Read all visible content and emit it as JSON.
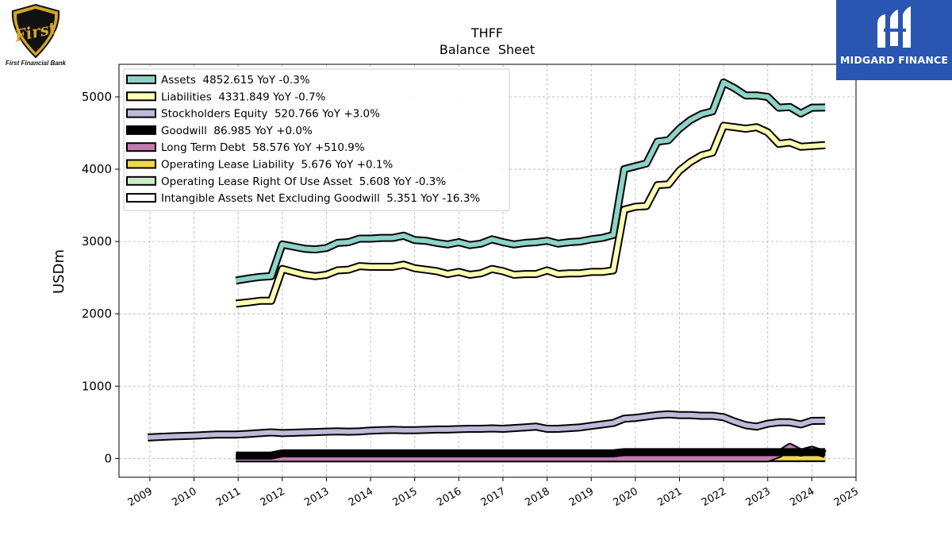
{
  "logos": {
    "left": {
      "wordmark": "First",
      "caption": "First Financial Bank"
    },
    "right": {
      "caption": "MIDGARD FINANCE"
    }
  },
  "chart_data": {
    "type": "line",
    "title": "THFF",
    "subtitle": "Balance  Sheet",
    "xlabel": "",
    "ylabel": "USDm",
    "xlim": [
      2008.3,
      2025.0
    ],
    "ylim": [
      -260,
      5450
    ],
    "xticks": [
      2009,
      2010,
      2011,
      2012,
      2013,
      2014,
      2015,
      2016,
      2017,
      2018,
      2019,
      2020,
      2021,
      2022,
      2023,
      2024,
      2025
    ],
    "yticks": [
      0,
      1000,
      2000,
      3000,
      4000,
      5000
    ],
    "grid": true,
    "legend_position": "top-left",
    "series": [
      {
        "name": "Assets",
        "legend": "Assets  4852.615 YoY -0.3%",
        "color": "#8dd3c7",
        "x": [
          2010.95,
          2011.25,
          2011.5,
          2011.75,
          2012.0,
          2012.25,
          2012.5,
          2012.75,
          2013.0,
          2013.25,
          2013.5,
          2013.75,
          2014.0,
          2014.25,
          2014.5,
          2014.75,
          2015.0,
          2015.25,
          2015.5,
          2015.75,
          2016.0,
          2016.25,
          2016.5,
          2016.75,
          2017.0,
          2017.25,
          2017.5,
          2017.75,
          2018.0,
          2018.25,
          2018.5,
          2018.75,
          2019.0,
          2019.25,
          2019.5,
          2019.75,
          2020.0,
          2020.25,
          2020.5,
          2020.75,
          2021.0,
          2021.25,
          2021.5,
          2021.75,
          2022.0,
          2022.25,
          2022.5,
          2022.75,
          2023.0,
          2023.25,
          2023.5,
          2023.75,
          2024.0,
          2024.3
        ],
        "y": [
          2460,
          2490,
          2510,
          2520,
          2960,
          2930,
          2900,
          2890,
          2910,
          2980,
          2990,
          3040,
          3040,
          3050,
          3050,
          3080,
          3020,
          3010,
          2980,
          2960,
          2990,
          2950,
          2970,
          3030,
          2990,
          2960,
          2980,
          2990,
          3010,
          2970,
          2990,
          3000,
          3030,
          3050,
          3090,
          4000,
          4040,
          4080,
          4380,
          4400,
          4560,
          4680,
          4760,
          4800,
          5200,
          5120,
          5020,
          5020,
          5000,
          4850,
          4860,
          4770,
          4850,
          4853
        ]
      },
      {
        "name": "Liabilities",
        "legend": "Liabilities  4331.849 YoY -0.7%",
        "color": "#ffffb3",
        "x": [
          2010.95,
          2011.25,
          2011.5,
          2011.75,
          2012.0,
          2012.25,
          2012.5,
          2012.75,
          2013.0,
          2013.25,
          2013.5,
          2013.75,
          2014.0,
          2014.25,
          2014.5,
          2014.75,
          2015.0,
          2015.25,
          2015.5,
          2015.75,
          2016.0,
          2016.25,
          2016.5,
          2016.75,
          2017.0,
          2017.25,
          2017.5,
          2017.75,
          2018.0,
          2018.25,
          2018.5,
          2018.75,
          2019.0,
          2019.25,
          2019.5,
          2019.75,
          2020.0,
          2020.25,
          2020.5,
          2020.75,
          2021.0,
          2021.25,
          2021.5,
          2021.75,
          2022.0,
          2022.25,
          2022.5,
          2022.75,
          2023.0,
          2023.25,
          2023.5,
          2023.75,
          2024.0,
          2024.3
        ],
        "y": [
          2140,
          2160,
          2180,
          2180,
          2620,
          2580,
          2540,
          2520,
          2540,
          2600,
          2610,
          2660,
          2650,
          2650,
          2650,
          2680,
          2630,
          2610,
          2590,
          2550,
          2580,
          2540,
          2560,
          2620,
          2590,
          2540,
          2550,
          2550,
          2600,
          2550,
          2560,
          2560,
          2580,
          2580,
          2600,
          3440,
          3480,
          3490,
          3780,
          3790,
          3980,
          4100,
          4190,
          4230,
          4600,
          4580,
          4560,
          4580,
          4510,
          4350,
          4370,
          4310,
          4320,
          4332
        ]
      },
      {
        "name": "Stockholders Equity",
        "legend": "Stockholders Equity  520.766 YoY +3.0%",
        "color": "#bebada",
        "x": [
          2008.95,
          2009.5,
          2010.0,
          2010.5,
          2010.95,
          2011.25,
          2011.5,
          2011.75,
          2012.0,
          2012.25,
          2012.5,
          2012.75,
          2013.0,
          2013.25,
          2013.5,
          2013.75,
          2014.0,
          2014.25,
          2014.5,
          2014.75,
          2015.0,
          2015.25,
          2015.5,
          2015.75,
          2016.0,
          2016.25,
          2016.5,
          2016.75,
          2017.0,
          2017.25,
          2017.5,
          2017.75,
          2018.0,
          2018.25,
          2018.5,
          2018.75,
          2019.0,
          2019.25,
          2019.5,
          2019.75,
          2020.0,
          2020.25,
          2020.5,
          2020.75,
          2021.0,
          2021.25,
          2021.5,
          2021.75,
          2022.0,
          2022.25,
          2022.5,
          2022.75,
          2023.0,
          2023.25,
          2023.5,
          2023.75,
          2024.0,
          2024.3
        ],
        "y": [
          290,
          305,
          315,
          330,
          330,
          340,
          350,
          360,
          350,
          355,
          360,
          365,
          370,
          375,
          370,
          375,
          385,
          390,
          395,
          390,
          390,
          395,
          400,
          400,
          405,
          410,
          410,
          415,
          410,
          420,
          430,
          440,
          410,
          410,
          420,
          430,
          450,
          470,
          490,
          550,
          560,
          580,
          600,
          610,
          600,
          600,
          590,
          590,
          570,
          510,
          460,
          440,
          480,
          500,
          500,
          470,
          520,
          521
        ]
      },
      {
        "name": "Goodwill",
        "legend": "Goodwill  86.985 YoY +0.0%",
        "color": "#000000",
        "x": [
          2010.95,
          2011.75,
          2012.0,
          2019.5,
          2019.75,
          2024.3
        ],
        "y": [
          40,
          40,
          70,
          70,
          87,
          87
        ]
      },
      {
        "name": "Long Term Debt",
        "legend": "Long Term Debt  58.576 YoY +510.9%",
        "color": "#c27bb0",
        "x": [
          2010.95,
          2023.0,
          2023.25,
          2023.5,
          2023.75,
          2024.0,
          2024.3
        ],
        "y": [
          0,
          0,
          60,
          160,
          80,
          120,
          59
        ]
      },
      {
        "name": "Operating Lease Liability",
        "legend": "Operating Lease Liability  5.676 YoY +0.1%",
        "color": "#f0d94a",
        "x": [
          2019.0,
          2024.3
        ],
        "y": [
          5.6,
          5.7
        ]
      },
      {
        "name": "Operating Lease Right Of Use Asset",
        "legend": "Operating Lease Right Of Use Asset  5.608 YoY -0.3%",
        "color": "#cdeac8",
        "x": [
          2019.0,
          2024.3
        ],
        "y": [
          5.6,
          5.6
        ]
      },
      {
        "name": "Intangible Assets Net Excluding Goodwill",
        "legend": "Intangible Assets Net Excluding Goodwill  5.351 YoY -16.3%",
        "color": "#ffffff",
        "x": [
          2010.95,
          2019.5,
          2020.0,
          2021.0,
          2022.0,
          2023.0,
          2024.3
        ],
        "y": [
          4,
          4,
          20,
          15,
          10,
          7,
          5.4
        ]
      }
    ]
  }
}
